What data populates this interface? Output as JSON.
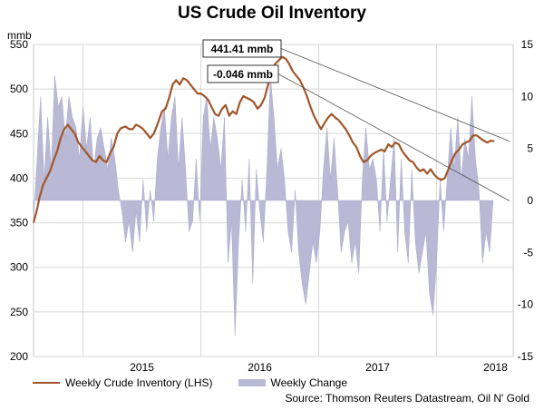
{
  "title": "US Crude Oil Inventory",
  "source": "Source: Thomson Reuters Datastream, Oil N' Gold",
  "colors": {
    "inventory_line": "#a0562a",
    "weekly_change_area": "#b9b9d6",
    "trend_lines": "#555555"
  },
  "chart_data": {
    "type": "line",
    "title": "US Crude Oil Inventory",
    "left_axis": {
      "unit_label": "mmb",
      "min": 200,
      "max": 550,
      "ticks": [
        200,
        250,
        300,
        350,
        400,
        450,
        500,
        550
      ]
    },
    "right_axis": {
      "min": -15,
      "max": 15,
      "ticks": [
        -15,
        -10,
        -5,
        0,
        5,
        10,
        15
      ]
    },
    "x_axis": {
      "min": 2014.58,
      "max": 2018.65,
      "ticks": [
        "2015",
        "2016",
        "2017",
        "2018"
      ]
    },
    "grid": true,
    "legend_position": "bottom-left",
    "series": [
      {
        "name": "Weekly Crude Inventory (LHS)",
        "axis": "left",
        "style": "line",
        "points": [
          [
            2014.58,
            350
          ],
          [
            2014.61,
            365
          ],
          [
            2014.63,
            378
          ],
          [
            2014.66,
            392
          ],
          [
            2014.69,
            400
          ],
          [
            2014.72,
            408
          ],
          [
            2014.75,
            420
          ],
          [
            2014.78,
            430
          ],
          [
            2014.81,
            445
          ],
          [
            2014.84,
            455
          ],
          [
            2014.87,
            460
          ],
          [
            2014.9,
            455
          ],
          [
            2014.93,
            450
          ],
          [
            2014.96,
            440
          ],
          [
            2014.99,
            435
          ],
          [
            2015.02,
            430
          ],
          [
            2015.05,
            425
          ],
          [
            2015.08,
            420
          ],
          [
            2015.11,
            418
          ],
          [
            2015.14,
            425
          ],
          [
            2015.17,
            420
          ],
          [
            2015.2,
            418
          ],
          [
            2015.23,
            428
          ],
          [
            2015.26,
            435
          ],
          [
            2015.29,
            450
          ],
          [
            2015.32,
            456
          ],
          [
            2015.36,
            458
          ],
          [
            2015.39,
            455
          ],
          [
            2015.42,
            455
          ],
          [
            2015.45,
            460
          ],
          [
            2015.48,
            458
          ],
          [
            2015.51,
            455
          ],
          [
            2015.54,
            450
          ],
          [
            2015.57,
            445
          ],
          [
            2015.6,
            450
          ],
          [
            2015.63,
            460
          ],
          [
            2015.67,
            475
          ],
          [
            2015.7,
            478
          ],
          [
            2015.73,
            490
          ],
          [
            2015.76,
            505
          ],
          [
            2015.79,
            510
          ],
          [
            2015.82,
            505
          ],
          [
            2015.85,
            512
          ],
          [
            2015.88,
            510
          ],
          [
            2015.91,
            505
          ],
          [
            2015.94,
            500
          ],
          [
            2015.97,
            495
          ],
          [
            2016.0,
            495
          ],
          [
            2016.03,
            492
          ],
          [
            2016.06,
            488
          ],
          [
            2016.09,
            480
          ],
          [
            2016.12,
            472
          ],
          [
            2016.15,
            470
          ],
          [
            2016.18,
            478
          ],
          [
            2016.21,
            482
          ],
          [
            2016.24,
            470
          ],
          [
            2016.27,
            475
          ],
          [
            2016.3,
            472
          ],
          [
            2016.33,
            485
          ],
          [
            2016.36,
            492
          ],
          [
            2016.39,
            490
          ],
          [
            2016.42,
            488
          ],
          [
            2016.45,
            485
          ],
          [
            2016.48,
            478
          ],
          [
            2016.51,
            482
          ],
          [
            2016.54,
            490
          ],
          [
            2016.57,
            505
          ],
          [
            2016.6,
            520
          ],
          [
            2016.63,
            528
          ],
          [
            2016.66,
            532
          ],
          [
            2016.69,
            536
          ],
          [
            2016.72,
            534
          ],
          [
            2016.75,
            528
          ],
          [
            2016.78,
            520
          ],
          [
            2016.81,
            515
          ],
          [
            2016.84,
            510
          ],
          [
            2016.87,
            502
          ],
          [
            2016.9,
            492
          ],
          [
            2016.93,
            480
          ],
          [
            2016.96,
            470
          ],
          [
            2016.99,
            462
          ],
          [
            2017.02,
            455
          ],
          [
            2017.05,
            462
          ],
          [
            2017.08,
            468
          ],
          [
            2017.11,
            472
          ],
          [
            2017.14,
            468
          ],
          [
            2017.17,
            465
          ],
          [
            2017.2,
            460
          ],
          [
            2017.23,
            455
          ],
          [
            2017.26,
            448
          ],
          [
            2017.29,
            440
          ],
          [
            2017.32,
            435
          ],
          [
            2017.35,
            425
          ],
          [
            2017.38,
            418
          ],
          [
            2017.41,
            420
          ],
          [
            2017.44,
            425
          ],
          [
            2017.47,
            428
          ],
          [
            2017.5,
            430
          ],
          [
            2017.53,
            432
          ],
          [
            2017.56,
            430
          ],
          [
            2017.59,
            438
          ],
          [
            2017.62,
            435
          ],
          [
            2017.65,
            440
          ],
          [
            2017.68,
            438
          ],
          [
            2017.71,
            430
          ],
          [
            2017.74,
            425
          ],
          [
            2017.77,
            420
          ],
          [
            2017.8,
            418
          ],
          [
            2017.83,
            412
          ],
          [
            2017.86,
            408
          ],
          [
            2017.89,
            410
          ],
          [
            2017.92,
            405
          ],
          [
            2017.95,
            410
          ],
          [
            2017.98,
            404
          ],
          [
            2018.01,
            400
          ],
          [
            2018.04,
            398
          ],
          [
            2018.07,
            400
          ],
          [
            2018.1,
            410
          ],
          [
            2018.13,
            420
          ],
          [
            2018.16,
            428
          ],
          [
            2018.19,
            432
          ],
          [
            2018.22,
            438
          ],
          [
            2018.25,
            440
          ],
          [
            2018.28,
            442
          ],
          [
            2018.31,
            448
          ],
          [
            2018.34,
            448
          ],
          [
            2018.37,
            445
          ],
          [
            2018.4,
            442
          ],
          [
            2018.43,
            440
          ],
          [
            2018.46,
            442
          ],
          [
            2018.49,
            441.41
          ]
        ]
      },
      {
        "name": "Weekly Change",
        "axis": "right",
        "style": "area",
        "points": [
          [
            2014.58,
            -2
          ],
          [
            2014.61,
            4
          ],
          [
            2014.64,
            10
          ],
          [
            2014.67,
            2
          ],
          [
            2014.7,
            8
          ],
          [
            2014.73,
            3
          ],
          [
            2014.76,
            12
          ],
          [
            2014.79,
            9
          ],
          [
            2014.82,
            10
          ],
          [
            2014.85,
            6
          ],
          [
            2014.88,
            10
          ],
          [
            2014.91,
            8
          ],
          [
            2014.94,
            7
          ],
          [
            2014.97,
            4
          ],
          [
            2015.0,
            9
          ],
          [
            2015.03,
            5
          ],
          [
            2015.06,
            8
          ],
          [
            2015.09,
            3
          ],
          [
            2015.12,
            6
          ],
          [
            2015.15,
            7
          ],
          [
            2015.18,
            5
          ],
          [
            2015.21,
            3
          ],
          [
            2015.24,
            6
          ],
          [
            2015.27,
            4
          ],
          [
            2015.3,
            1
          ],
          [
            2015.33,
            -1
          ],
          [
            2015.36,
            -4
          ],
          [
            2015.39,
            -2
          ],
          [
            2015.42,
            -5
          ],
          [
            2015.45,
            -1
          ],
          [
            2015.48,
            -4
          ],
          [
            2015.51,
            2
          ],
          [
            2015.54,
            -3
          ],
          [
            2015.57,
            1
          ],
          [
            2015.6,
            -2
          ],
          [
            2015.63,
            4
          ],
          [
            2015.66,
            7
          ],
          [
            2015.69,
            9
          ],
          [
            2015.72,
            4
          ],
          [
            2015.75,
            8
          ],
          [
            2015.78,
            10
          ],
          [
            2015.81,
            3
          ],
          [
            2015.84,
            8
          ],
          [
            2015.87,
            3
          ],
          [
            2015.9,
            -3
          ],
          [
            2015.93,
            -2
          ],
          [
            2015.96,
            4
          ],
          [
            2015.99,
            -2
          ],
          [
            2016.02,
            8
          ],
          [
            2016.05,
            10
          ],
          [
            2016.08,
            5
          ],
          [
            2016.11,
            8
          ],
          [
            2016.14,
            6
          ],
          [
            2016.17,
            3
          ],
          [
            2016.2,
            8
          ],
          [
            2016.23,
            -6
          ],
          [
            2016.26,
            -2
          ],
          [
            2016.29,
            -13
          ],
          [
            2016.32,
            -4
          ],
          [
            2016.35,
            2
          ],
          [
            2016.38,
            -3
          ],
          [
            2016.41,
            4
          ],
          [
            2016.44,
            -8
          ],
          [
            2016.47,
            3
          ],
          [
            2016.5,
            -1
          ],
          [
            2016.53,
            -4
          ],
          [
            2016.56,
            3
          ],
          [
            2016.59,
            12
          ],
          [
            2016.62,
            8
          ],
          [
            2016.65,
            3
          ],
          [
            2016.68,
            5
          ],
          [
            2016.71,
            2
          ],
          [
            2016.74,
            -3
          ],
          [
            2016.77,
            -5
          ],
          [
            2016.8,
            1
          ],
          [
            2016.83,
            -5
          ],
          [
            2016.86,
            -8
          ],
          [
            2016.89,
            -10
          ],
          [
            2016.92,
            -7
          ],
          [
            2016.95,
            -4
          ],
          [
            2016.98,
            -6
          ],
          [
            2017.01,
            -3
          ],
          [
            2017.04,
            3
          ],
          [
            2017.07,
            7
          ],
          [
            2017.1,
            2
          ],
          [
            2017.13,
            6
          ],
          [
            2017.16,
            1
          ],
          [
            2017.19,
            -5
          ],
          [
            2017.22,
            -3
          ],
          [
            2017.25,
            -2
          ],
          [
            2017.28,
            -6
          ],
          [
            2017.31,
            -4
          ],
          [
            2017.34,
            -7
          ],
          [
            2017.37,
            2
          ],
          [
            2017.4,
            7
          ],
          [
            2017.43,
            3
          ],
          [
            2017.46,
            4
          ],
          [
            2017.49,
            2
          ],
          [
            2017.52,
            -3
          ],
          [
            2017.55,
            5
          ],
          [
            2017.58,
            -2
          ],
          [
            2017.61,
            2
          ],
          [
            2017.64,
            6
          ],
          [
            2017.67,
            -5
          ],
          [
            2017.7,
            4
          ],
          [
            2017.73,
            -3
          ],
          [
            2017.76,
            -6
          ],
          [
            2017.79,
            3
          ],
          [
            2017.82,
            -4
          ],
          [
            2017.85,
            -7
          ],
          [
            2017.88,
            -5
          ],
          [
            2017.91,
            -3
          ],
          [
            2017.94,
            -9
          ],
          [
            2017.97,
            -11
          ],
          [
            2018.0,
            -6
          ],
          [
            2018.03,
            2
          ],
          [
            2018.06,
            -3
          ],
          [
            2018.09,
            2
          ],
          [
            2018.12,
            7
          ],
          [
            2018.15,
            3
          ],
          [
            2018.18,
            8
          ],
          [
            2018.21,
            2
          ],
          [
            2018.24,
            6
          ],
          [
            2018.27,
            4
          ],
          [
            2018.3,
            10
          ],
          [
            2018.33,
            4
          ],
          [
            2018.36,
            1
          ],
          [
            2018.39,
            -6
          ],
          [
            2018.42,
            -3
          ],
          [
            2018.45,
            -5
          ],
          [
            2018.48,
            0
          ]
        ]
      }
    ],
    "annotations": [
      {
        "label": "441.41 mmb",
        "from": [
          2016.7,
          535
        ],
        "to": [
          2018.49,
          441.41
        ],
        "axis": "left"
      },
      {
        "label": "-0.046 mmb",
        "from": [
          2016.55,
          500
        ],
        "to": [
          2018.49,
          -0.046
        ],
        "axis": "right"
      }
    ]
  }
}
